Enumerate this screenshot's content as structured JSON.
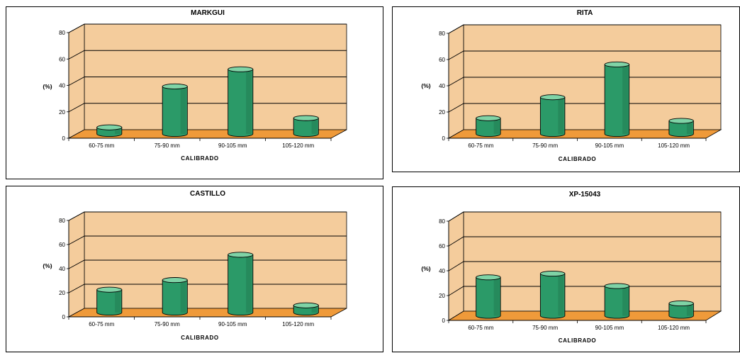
{
  "colors": {
    "wall": "#f4cc9c",
    "floor": "#ef9a3a",
    "bar_body": "#2b9a68",
    "bar_top": "#7fd3a6",
    "bar_dark": "#1d6e49",
    "grid": "#000000"
  },
  "chart_data": [
    {
      "type": "bar",
      "title": "MARKGUI",
      "xlabel": "CALIBRADO",
      "ylabel": "(%)",
      "categories": [
        "60-75 mm",
        "75-90 mm",
        "90-105 mm",
        "105-120 mm"
      ],
      "values": [
        5,
        36,
        49,
        12
      ],
      "ylim": [
        0,
        80
      ],
      "yticks": [
        "0",
        "20",
        "40",
        "60",
        "80"
      ],
      "grid": true
    },
    {
      "type": "bar",
      "title": "RITA",
      "xlabel": "CALIBRADO",
      "ylabel": "(%)",
      "categories": [
        "60-75 mm",
        "75-90 mm",
        "90-105 mm",
        "105-120 mm"
      ],
      "values": [
        12,
        28,
        53,
        10
      ],
      "ylim": [
        0,
        80
      ],
      "yticks": [
        "0",
        "20",
        "40",
        "60",
        "80"
      ],
      "grid": true
    },
    {
      "type": "bar",
      "title": "CASTILLO",
      "xlabel": "CALIBRADO",
      "ylabel": "(%)",
      "categories": [
        "60-75 mm",
        "75-90 mm",
        "90-105 mm",
        "105-120 mm"
      ],
      "values": [
        19,
        27,
        48,
        6
      ],
      "ylim": [
        0,
        80
      ],
      "yticks": [
        "0",
        "20",
        "40",
        "60",
        "80"
      ],
      "grid": true
    },
    {
      "type": "bar",
      "title": "XP-15043",
      "xlabel": "CALIBRADO",
      "ylabel": "(%)",
      "categories": [
        "60-75 mm",
        "75-90 mm",
        "90-105 mm",
        "105-120 mm"
      ],
      "values": [
        31,
        34,
        24,
        10
      ],
      "ylim": [
        0,
        80
      ],
      "yticks": [
        "0",
        "20",
        "40",
        "60",
        "80"
      ],
      "grid": true
    }
  ]
}
